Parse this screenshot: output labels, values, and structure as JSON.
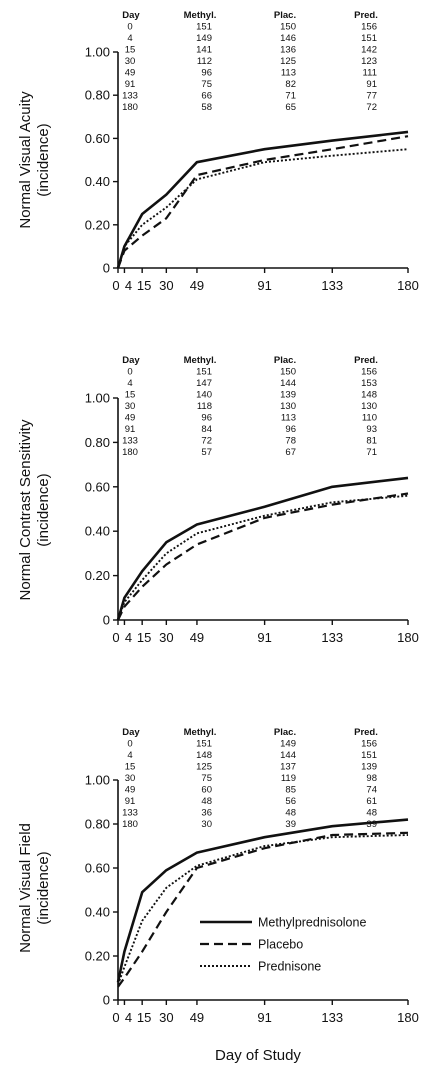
{
  "chart_data": [
    {
      "type": "line",
      "ylabel": [
        "Normal Visual Acuity",
        "(incidence)"
      ],
      "x": [
        0,
        4,
        15,
        30,
        49,
        91,
        133,
        180
      ],
      "xticks": [
        "0",
        "4",
        "15",
        "30",
        "49",
        "91",
        "133",
        "180"
      ],
      "yticks": [
        "0",
        "0.20",
        "0.40",
        "0.60",
        "0.80",
        "1.00"
      ],
      "ylim": [
        0,
        1.0
      ],
      "series": [
        {
          "name": "Methylprednisolone",
          "dash": "solid",
          "values": [
            0,
            0.1,
            0.25,
            0.34,
            0.49,
            0.55,
            0.59,
            0.63
          ]
        },
        {
          "name": "Placebo",
          "dash": "dashed",
          "values": [
            0,
            0.08,
            0.15,
            0.23,
            0.43,
            0.5,
            0.55,
            0.61
          ]
        },
        {
          "name": "Prednisone",
          "dash": "dotted",
          "values": [
            0,
            0.1,
            0.2,
            0.28,
            0.41,
            0.49,
            0.52,
            0.55
          ]
        }
      ],
      "table": {
        "headers": [
          "Day",
          "Methyl.",
          "Plac.",
          "Pred."
        ],
        "rows": [
          [
            "0",
            "151",
            "150",
            "156"
          ],
          [
            "4",
            "149",
            "146",
            "151"
          ],
          [
            "15",
            "141",
            "136",
            "142"
          ],
          [
            "30",
            "112",
            "125",
            "123"
          ],
          [
            "49",
            "96",
            "113",
            "111"
          ],
          [
            "91",
            "75",
            "82",
            "91"
          ],
          [
            "133",
            "66",
            "71",
            "77"
          ],
          [
            "180",
            "58",
            "65",
            "72"
          ]
        ]
      }
    },
    {
      "type": "line",
      "ylabel": [
        "Normal Contrast Sensitivity",
        "(incidence)"
      ],
      "x": [
        0,
        4,
        15,
        30,
        49,
        91,
        133,
        180
      ],
      "xticks": [
        "0",
        "4",
        "15",
        "30",
        "49",
        "91",
        "133",
        "180"
      ],
      "yticks": [
        "0",
        "0.20",
        "0.40",
        "0.60",
        "0.80",
        "1.00"
      ],
      "ylim": [
        0,
        1.0
      ],
      "series": [
        {
          "name": "Methylprednisolone",
          "dash": "solid",
          "values": [
            0,
            0.1,
            0.22,
            0.35,
            0.43,
            0.51,
            0.6,
            0.64
          ]
        },
        {
          "name": "Placebo",
          "dash": "dashed",
          "values": [
            0,
            0.06,
            0.15,
            0.25,
            0.34,
            0.46,
            0.52,
            0.57
          ]
        },
        {
          "name": "Prednisone",
          "dash": "dotted",
          "values": [
            0,
            0.08,
            0.18,
            0.3,
            0.39,
            0.47,
            0.53,
            0.56
          ]
        }
      ],
      "table": {
        "headers": [
          "Day",
          "Methyl.",
          "Plac.",
          "Pred."
        ],
        "rows": [
          [
            "0",
            "151",
            "150",
            "156"
          ],
          [
            "4",
            "147",
            "144",
            "153"
          ],
          [
            "15",
            "140",
            "139",
            "148"
          ],
          [
            "30",
            "118",
            "130",
            "130"
          ],
          [
            "49",
            "96",
            "113",
            "110"
          ],
          [
            "91",
            "84",
            "96",
            "93"
          ],
          [
            "133",
            "72",
            "78",
            "81"
          ],
          [
            "180",
            "57",
            "67",
            "71"
          ]
        ]
      }
    },
    {
      "type": "line",
      "ylabel": [
        "Normal Visual Field",
        "(incidence)"
      ],
      "xlabel": "Day of Study",
      "x": [
        0,
        4,
        15,
        30,
        49,
        91,
        133,
        180
      ],
      "xticks": [
        "0",
        "4",
        "15",
        "30",
        "49",
        "91",
        "133",
        "180"
      ],
      "yticks": [
        "0",
        "0.20",
        "0.40",
        "0.60",
        "0.80",
        "1.00"
      ],
      "ylim": [
        0,
        1.0
      ],
      "legend": "inside lower-right",
      "series": [
        {
          "name": "Methylprednisolone",
          "dash": "solid",
          "values": [
            0.08,
            0.22,
            0.49,
            0.59,
            0.67,
            0.74,
            0.79,
            0.82
          ]
        },
        {
          "name": "Placebo",
          "dash": "dashed",
          "values": [
            0.06,
            0.1,
            0.22,
            0.4,
            0.6,
            0.69,
            0.75,
            0.76
          ]
        },
        {
          "name": "Prednisone",
          "dash": "dotted",
          "values": [
            0.07,
            0.15,
            0.36,
            0.51,
            0.61,
            0.7,
            0.74,
            0.75
          ]
        }
      ],
      "table": {
        "headers": [
          "Day",
          "Methyl.",
          "Plac.",
          "Pred."
        ],
        "rows": [
          [
            "0",
            "151",
            "149",
            "156"
          ],
          [
            "4",
            "148",
            "144",
            "151"
          ],
          [
            "15",
            "125",
            "137",
            "139"
          ],
          [
            "30",
            "75",
            "119",
            "98"
          ],
          [
            "49",
            "60",
            "85",
            "74"
          ],
          [
            "91",
            "48",
            "56",
            "61"
          ],
          [
            "133",
            "36",
            "48",
            "48"
          ],
          [
            "180",
            "30",
            "39",
            "39"
          ]
        ]
      }
    }
  ]
}
